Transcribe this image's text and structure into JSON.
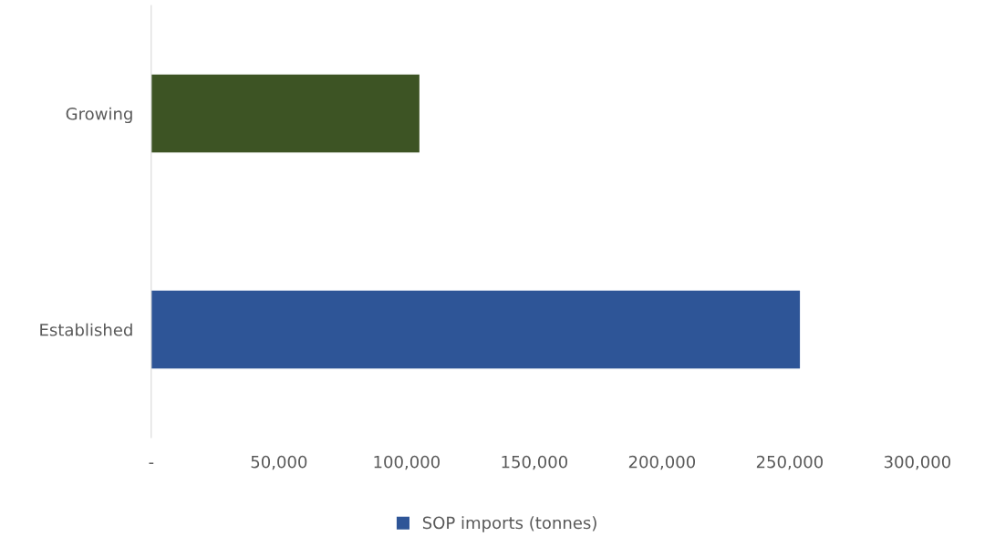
{
  "chart_data": {
    "type": "bar",
    "orientation": "horizontal",
    "categories": [
      "Growing",
      "Established"
    ],
    "series": [
      {
        "name": "SOP imports (tonnes)",
        "color": "#2e5597",
        "colors": [
          "#3d5424",
          "#2e5597"
        ],
        "values": [
          105000,
          254000
        ]
      }
    ],
    "xlim": [
      0,
      300000
    ],
    "xticks": [
      {
        "value": 0,
        "label": "-"
      },
      {
        "value": 50000,
        "label": "50,000"
      },
      {
        "value": 100000,
        "label": "100,000"
      },
      {
        "value": 150000,
        "label": "150,000"
      },
      {
        "value": 200000,
        "label": "200,000"
      },
      {
        "value": 250000,
        "label": "250,000"
      },
      {
        "value": 300000,
        "label": "300,000"
      }
    ],
    "grid": false,
    "legend": "bottom"
  }
}
